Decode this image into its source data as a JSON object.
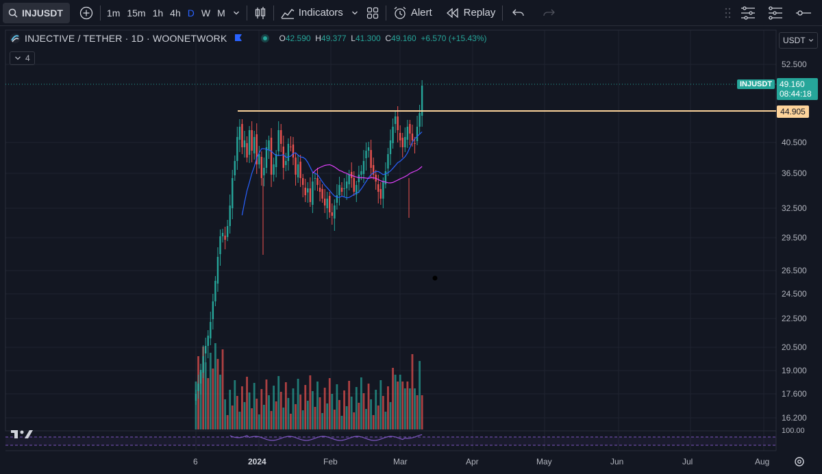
{
  "toolbar": {
    "symbol": "INJUSDT",
    "intervals": [
      "1m",
      "15m",
      "1h",
      "4h",
      "D",
      "W",
      "M"
    ],
    "active_interval": "D",
    "indicators_label": "Indicators",
    "alert_label": "Alert",
    "replay_label": "Replay"
  },
  "legend": {
    "title": "INJECTIVE / TETHER · 1D · WOONETWORK",
    "open_key": "O",
    "open": "42.590",
    "high_key": "H",
    "high": "49.377",
    "low_key": "L",
    "low": "41.300",
    "close_key": "C",
    "close": "49.160",
    "change": "+6.570 (+15.43%)",
    "collapsed_count": "4"
  },
  "currency": "USDT",
  "price_axis": [
    "52.500",
    "40.500",
    "36.500",
    "32.500",
    "29.500",
    "26.500",
    "24.500",
    "22.500",
    "20.500",
    "19.000",
    "17.600",
    "16.200",
    "100.00"
  ],
  "last_price": {
    "symbol": "INJUSDT",
    "price": "49.160",
    "countdown": "08:44:18"
  },
  "horizontal_line": {
    "price": "44.905"
  },
  "time_axis": [
    "6",
    "2024",
    "Feb",
    "Mar",
    "Apr",
    "May",
    "Jun",
    "Jul",
    "Aug"
  ],
  "colors": {
    "up": "#26a69a",
    "down": "#ef5350",
    "ma_fast": "#2962ff",
    "ma_slow": "#e040fb",
    "hline": "#fdd49b",
    "rsi": "#7e57c2"
  }
}
